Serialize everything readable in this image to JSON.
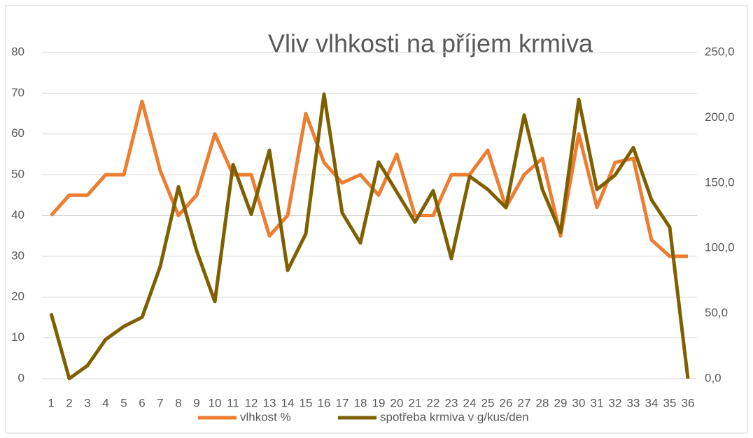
{
  "chart_data": {
    "type": "line",
    "title": "Vliv vlhkosti na příjem krmiva",
    "categories": [
      "1",
      "2",
      "3",
      "4",
      "5",
      "6",
      "7",
      "8",
      "9",
      "10",
      "11",
      "12",
      "13",
      "14",
      "15",
      "16",
      "17",
      "18",
      "19",
      "20",
      "21",
      "22",
      "23",
      "24",
      "25",
      "26",
      "27",
      "28",
      "29",
      "30",
      "31",
      "32",
      "33",
      "34",
      "35",
      "36"
    ],
    "series": [
      {
        "name": "vlhkost %",
        "color": "#ed7d31",
        "axis": "y",
        "values": [
          40,
          45,
          45,
          50,
          50,
          68,
          51,
          40,
          45,
          60,
          50,
          50,
          35,
          40,
          65,
          53,
          48,
          50,
          45,
          55,
          40,
          40,
          50,
          50,
          56,
          42,
          50,
          54,
          35,
          60,
          42,
          53,
          54,
          34,
          30,
          30
        ]
      },
      {
        "name": "spotřeba krmiva v g/kus/den",
        "color": "#7f6000",
        "axis": "y2",
        "values": [
          50,
          0,
          10,
          30,
          40,
          47,
          86,
          147,
          98,
          59,
          164,
          126,
          175,
          83,
          111,
          218,
          127,
          104,
          166,
          143,
          120,
          144,
          92,
          155,
          145,
          131,
          202,
          145,
          112,
          214,
          145,
          156,
          177,
          137,
          116,
          0
        ]
      }
    ],
    "ylim": [
      0,
      80
    ],
    "yticks": [
      0,
      10,
      20,
      30,
      40,
      50,
      60,
      70,
      80
    ],
    "y2lim": [
      0,
      250
    ],
    "y2ticks": [
      {
        "value": 0,
        "label": "0,0"
      },
      {
        "value": 50,
        "label": "50,0"
      },
      {
        "value": 100,
        "label": "100,0"
      },
      {
        "value": 150,
        "label": "150,0"
      },
      {
        "value": 200,
        "label": "200,0"
      },
      {
        "value": 250,
        "label": "250,0"
      }
    ],
    "legend": "bottom"
  }
}
